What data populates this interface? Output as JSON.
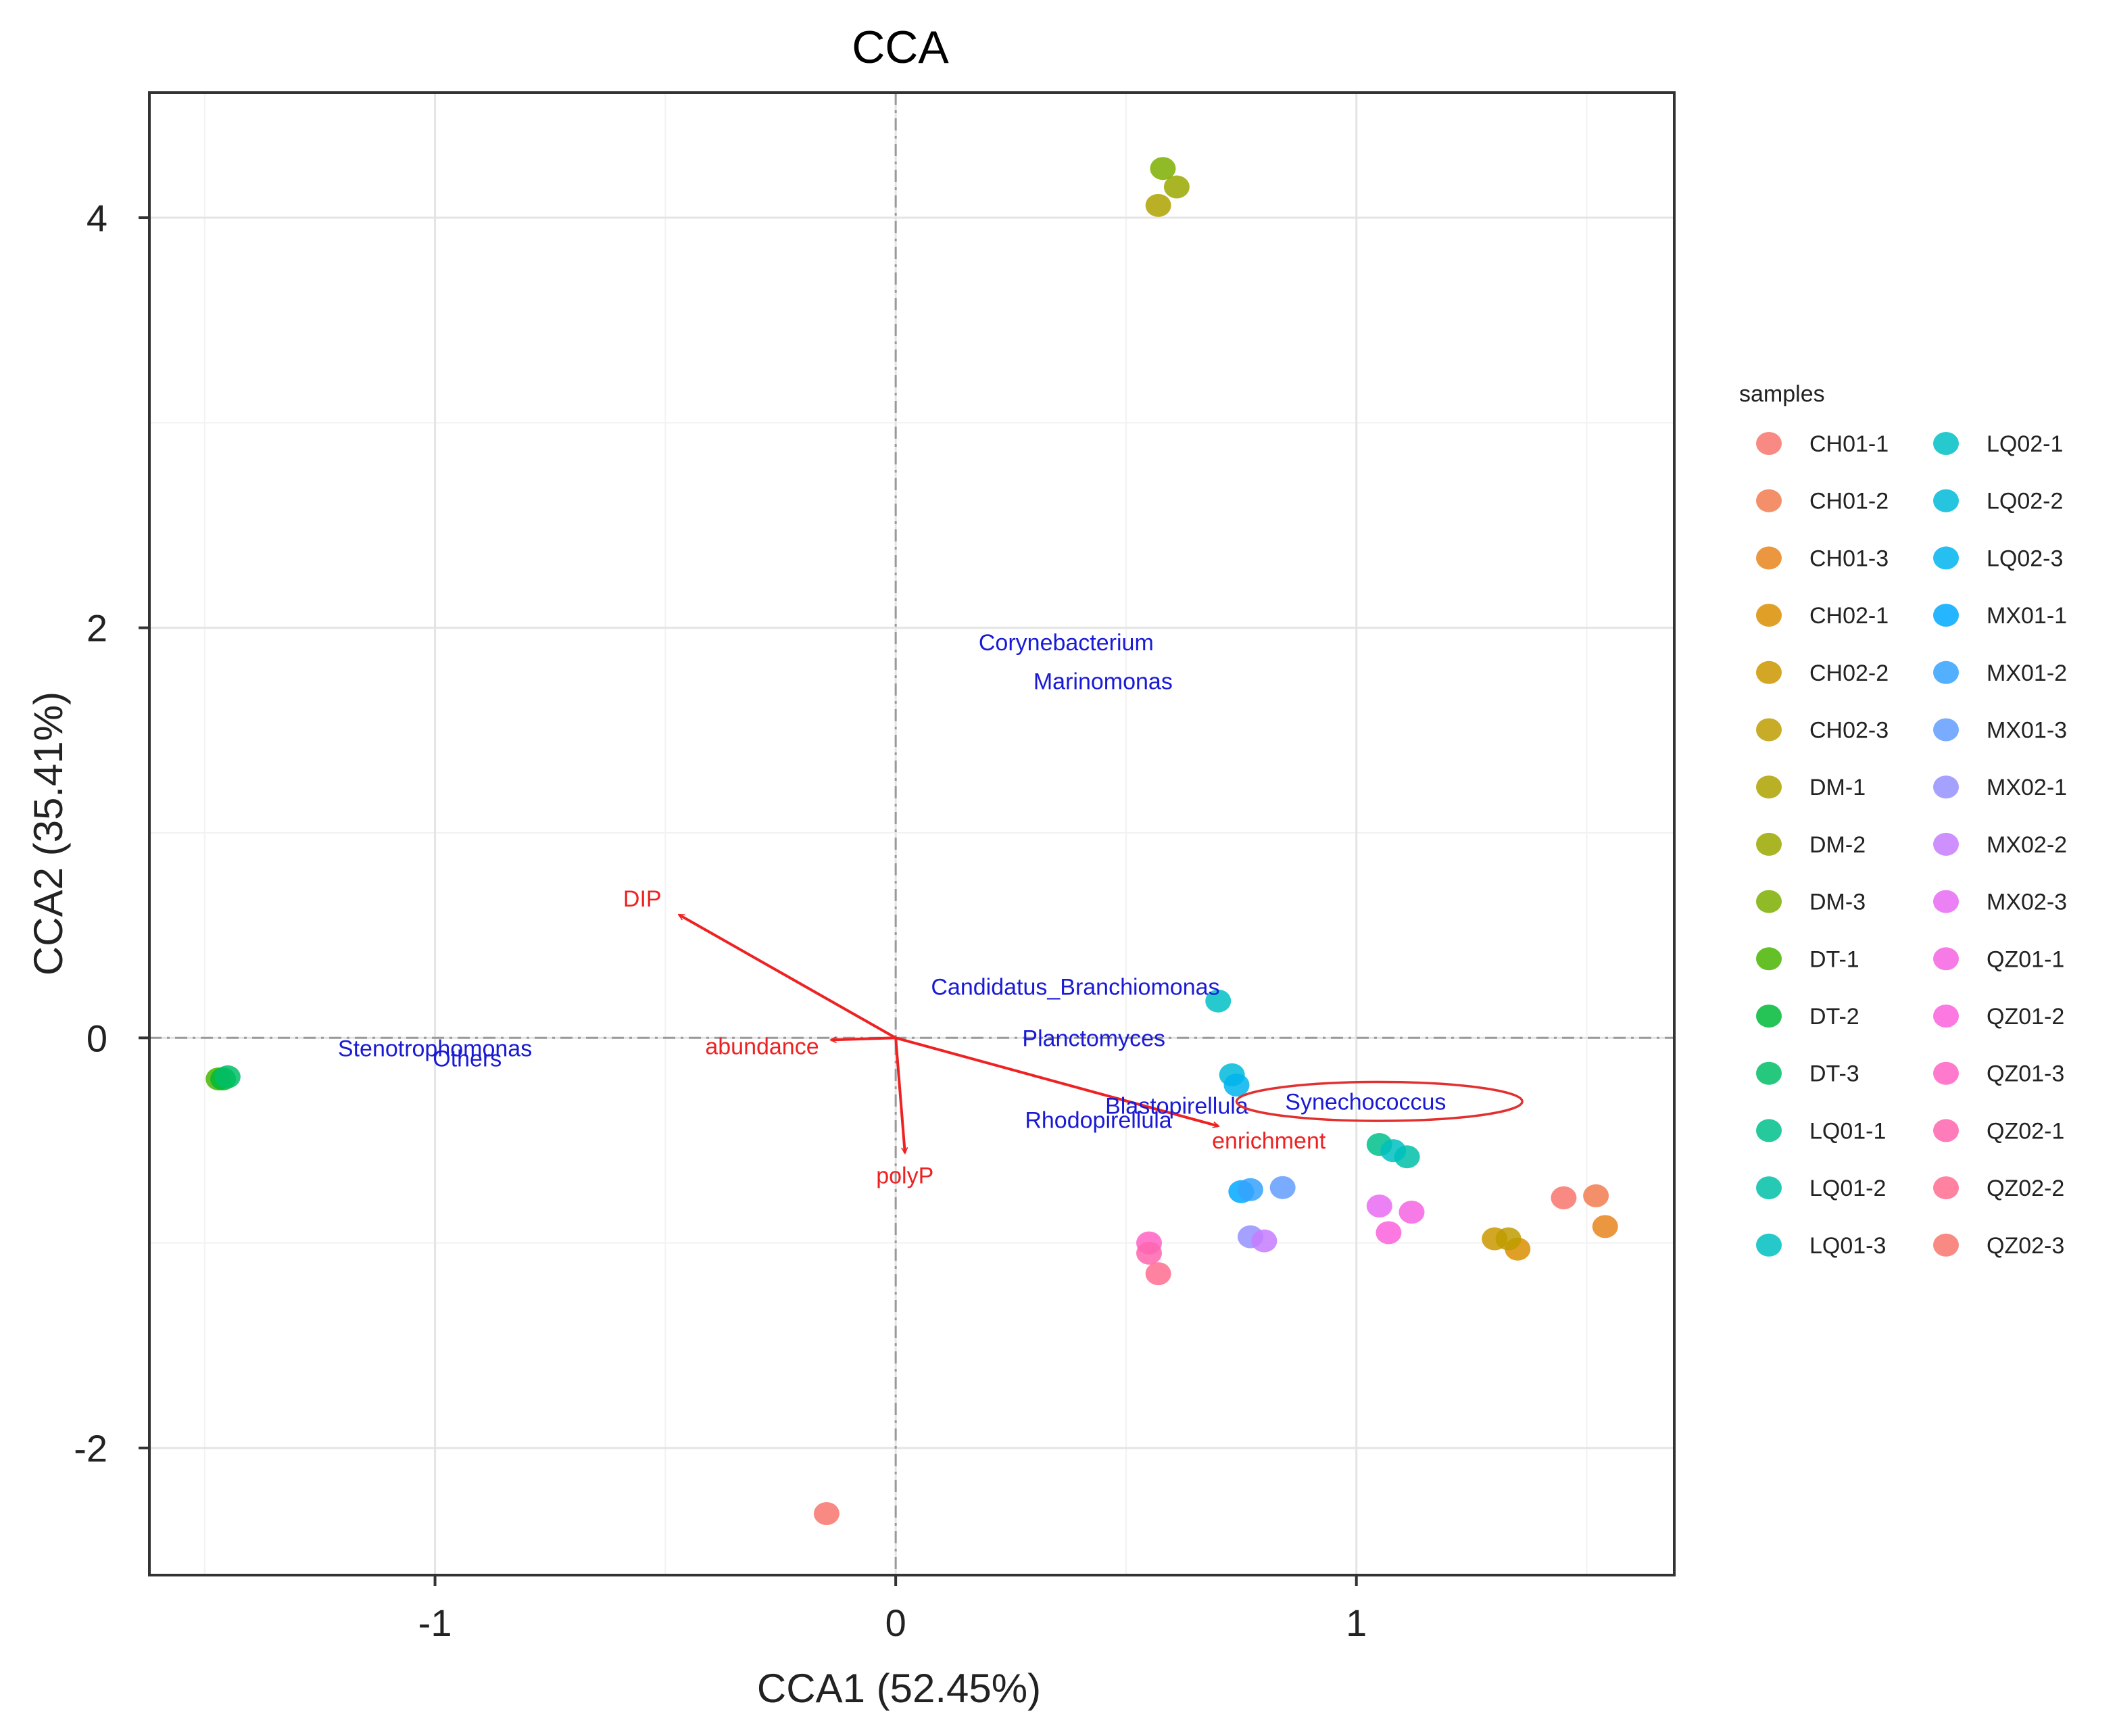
{
  "chart_data": {
    "type": "scatter",
    "title": "CCA",
    "xlabel": "CCA1 (52.45%)",
    "ylabel": "CCA2 (35.41%)",
    "xlim": [
      -1.62,
      1.69
    ],
    "ylim": [
      -2.62,
      4.61
    ],
    "x_ticks": [
      -1,
      0,
      1
    ],
    "y_ticks": [
      -2,
      0,
      2,
      4
    ],
    "grid": true,
    "reference_lines": [
      {
        "axis": "x",
        "value": 0
      },
      {
        "axis": "y",
        "value": 0
      }
    ],
    "legend": {
      "title": "samples",
      "position": "right",
      "columns": 2
    },
    "series": [
      {
        "name": "CH01-1",
        "color": "#F8766D",
        "points": [
          [
            1.45,
            -0.78
          ]
        ]
      },
      {
        "name": "CH01-2",
        "color": "#F17D50",
        "points": [
          [
            1.52,
            -0.77
          ]
        ]
      },
      {
        "name": "CH01-3",
        "color": "#E7851E",
        "points": [
          [
            1.54,
            -0.92
          ]
        ]
      },
      {
        "name": "CH02-1",
        "color": "#DB8E00",
        "points": [
          [
            1.35,
            -1.03
          ]
        ]
      },
      {
        "name": "CH02-2",
        "color": "#CD9600",
        "points": [
          [
            1.3,
            -0.98
          ]
        ]
      },
      {
        "name": "CH02-3",
        "color": "#BE9C00",
        "points": [
          [
            1.33,
            -0.98
          ]
        ]
      },
      {
        "name": "DM-1",
        "color": "#AEA200",
        "points": [
          [
            0.57,
            4.06
          ]
        ]
      },
      {
        "name": "DM-2",
        "color": "#9BA800",
        "points": [
          [
            0.61,
            4.15
          ]
        ]
      },
      {
        "name": "DM-3",
        "color": "#7CAE00",
        "points": [
          [
            0.58,
            4.24
          ]
        ]
      },
      {
        "name": "DT-1",
        "color": "#49B500",
        "points": [
          [
            -1.47,
            -0.2
          ]
        ]
      },
      {
        "name": "DT-2",
        "color": "#00BA38",
        "points": [
          [
            -1.46,
            -0.2
          ]
        ]
      },
      {
        "name": "DT-3",
        "color": "#00BE67",
        "points": [
          [
            -1.45,
            -0.19
          ]
        ]
      },
      {
        "name": "LQ01-1",
        "color": "#00C08B",
        "points": [
          [
            1.05,
            -0.52
          ]
        ]
      },
      {
        "name": "LQ01-2",
        "color": "#00C1A7",
        "points": [
          [
            1.11,
            -0.58
          ]
        ]
      },
      {
        "name": "LQ01-3",
        "color": "#00C0BF",
        "points": [
          [
            1.08,
            -0.55
          ]
        ]
      },
      {
        "name": "LQ02-1",
        "color": "#00BFC4",
        "points": [
          [
            0.7,
            0.18
          ]
        ]
      },
      {
        "name": "LQ02-2",
        "color": "#00BAD9",
        "points": [
          [
            0.73,
            -0.18
          ]
        ]
      },
      {
        "name": "LQ02-3",
        "color": "#00B4EF",
        "points": [
          [
            0.74,
            -0.23
          ]
        ]
      },
      {
        "name": "MX01-1",
        "color": "#00A9FF",
        "points": [
          [
            0.75,
            -0.75
          ]
        ]
      },
      {
        "name": "MX01-2",
        "color": "#35A2FF",
        "points": [
          [
            0.77,
            -0.74
          ]
        ]
      },
      {
        "name": "MX01-3",
        "color": "#619CFF",
        "points": [
          [
            0.84,
            -0.73
          ]
        ]
      },
      {
        "name": "MX02-1",
        "color": "#9590FF",
        "points": [
          [
            0.77,
            -0.97
          ]
        ]
      },
      {
        "name": "MX02-2",
        "color": "#C77CFF",
        "points": [
          [
            0.8,
            -0.99
          ]
        ]
      },
      {
        "name": "MX02-3",
        "color": "#E76BF3",
        "points": [
          [
            1.05,
            -0.82
          ]
        ]
      },
      {
        "name": "QZ01-1",
        "color": "#F564E3",
        "points": [
          [
            1.12,
            -0.85
          ]
        ]
      },
      {
        "name": "QZ01-2",
        "color": "#FA62DB",
        "points": [
          [
            1.07,
            -0.95
          ]
        ]
      },
      {
        "name": "QZ01-3",
        "color": "#FF61C3",
        "points": [
          [
            0.55,
            -1.0
          ]
        ]
      },
      {
        "name": "QZ02-1",
        "color": "#FF65AE",
        "points": [
          [
            0.55,
            -1.05
          ]
        ]
      },
      {
        "name": "QZ02-2",
        "color": "#FF6C91",
        "points": [
          [
            0.57,
            -1.15
          ]
        ]
      },
      {
        "name": "QZ02-3",
        "color": "#F8766D",
        "points": [
          [
            -0.15,
            -2.32
          ]
        ]
      }
    ],
    "species": [
      {
        "label": "Corynebacterium",
        "x": 0.37,
        "y": 1.93
      },
      {
        "label": "Marinomonas",
        "x": 0.45,
        "y": 1.74
      },
      {
        "label": "Candidatus_Branchiomonas",
        "x": 0.39,
        "y": 0.25
      },
      {
        "label": "Planctomyces",
        "x": 0.43,
        "y": 0.0
      },
      {
        "label": "Stenotrophomonas",
        "x": -1.0,
        "y": -0.05
      },
      {
        "label": "Others",
        "x": -0.93,
        "y": -0.1
      },
      {
        "label": "Blastopirellula",
        "x": 0.61,
        "y": -0.33
      },
      {
        "label": "Rhodopirellula",
        "x": 0.44,
        "y": -0.4
      },
      {
        "label": "Synechococcus",
        "x": 1.02,
        "y": -0.31
      }
    ],
    "env_vectors": [
      {
        "label": "DIP",
        "x": -0.47,
        "y": 0.6,
        "label_x": -0.55,
        "label_y": 0.68
      },
      {
        "label": "abundance",
        "x": -0.14,
        "y": -0.01,
        "label_x": -0.29,
        "label_y": -0.04
      },
      {
        "label": "polyP",
        "x": 0.02,
        "y": -0.56,
        "label_x": 0.02,
        "label_y": -0.67
      },
      {
        "label": "enrichment",
        "x": 0.7,
        "y": -0.43,
        "label_x": 0.81,
        "label_y": -0.5
      }
    ],
    "highlight": {
      "target": "Synechococcus",
      "cx": 1.05,
      "cy": -0.31,
      "rx": 0.31,
      "ry": 0.095
    }
  }
}
